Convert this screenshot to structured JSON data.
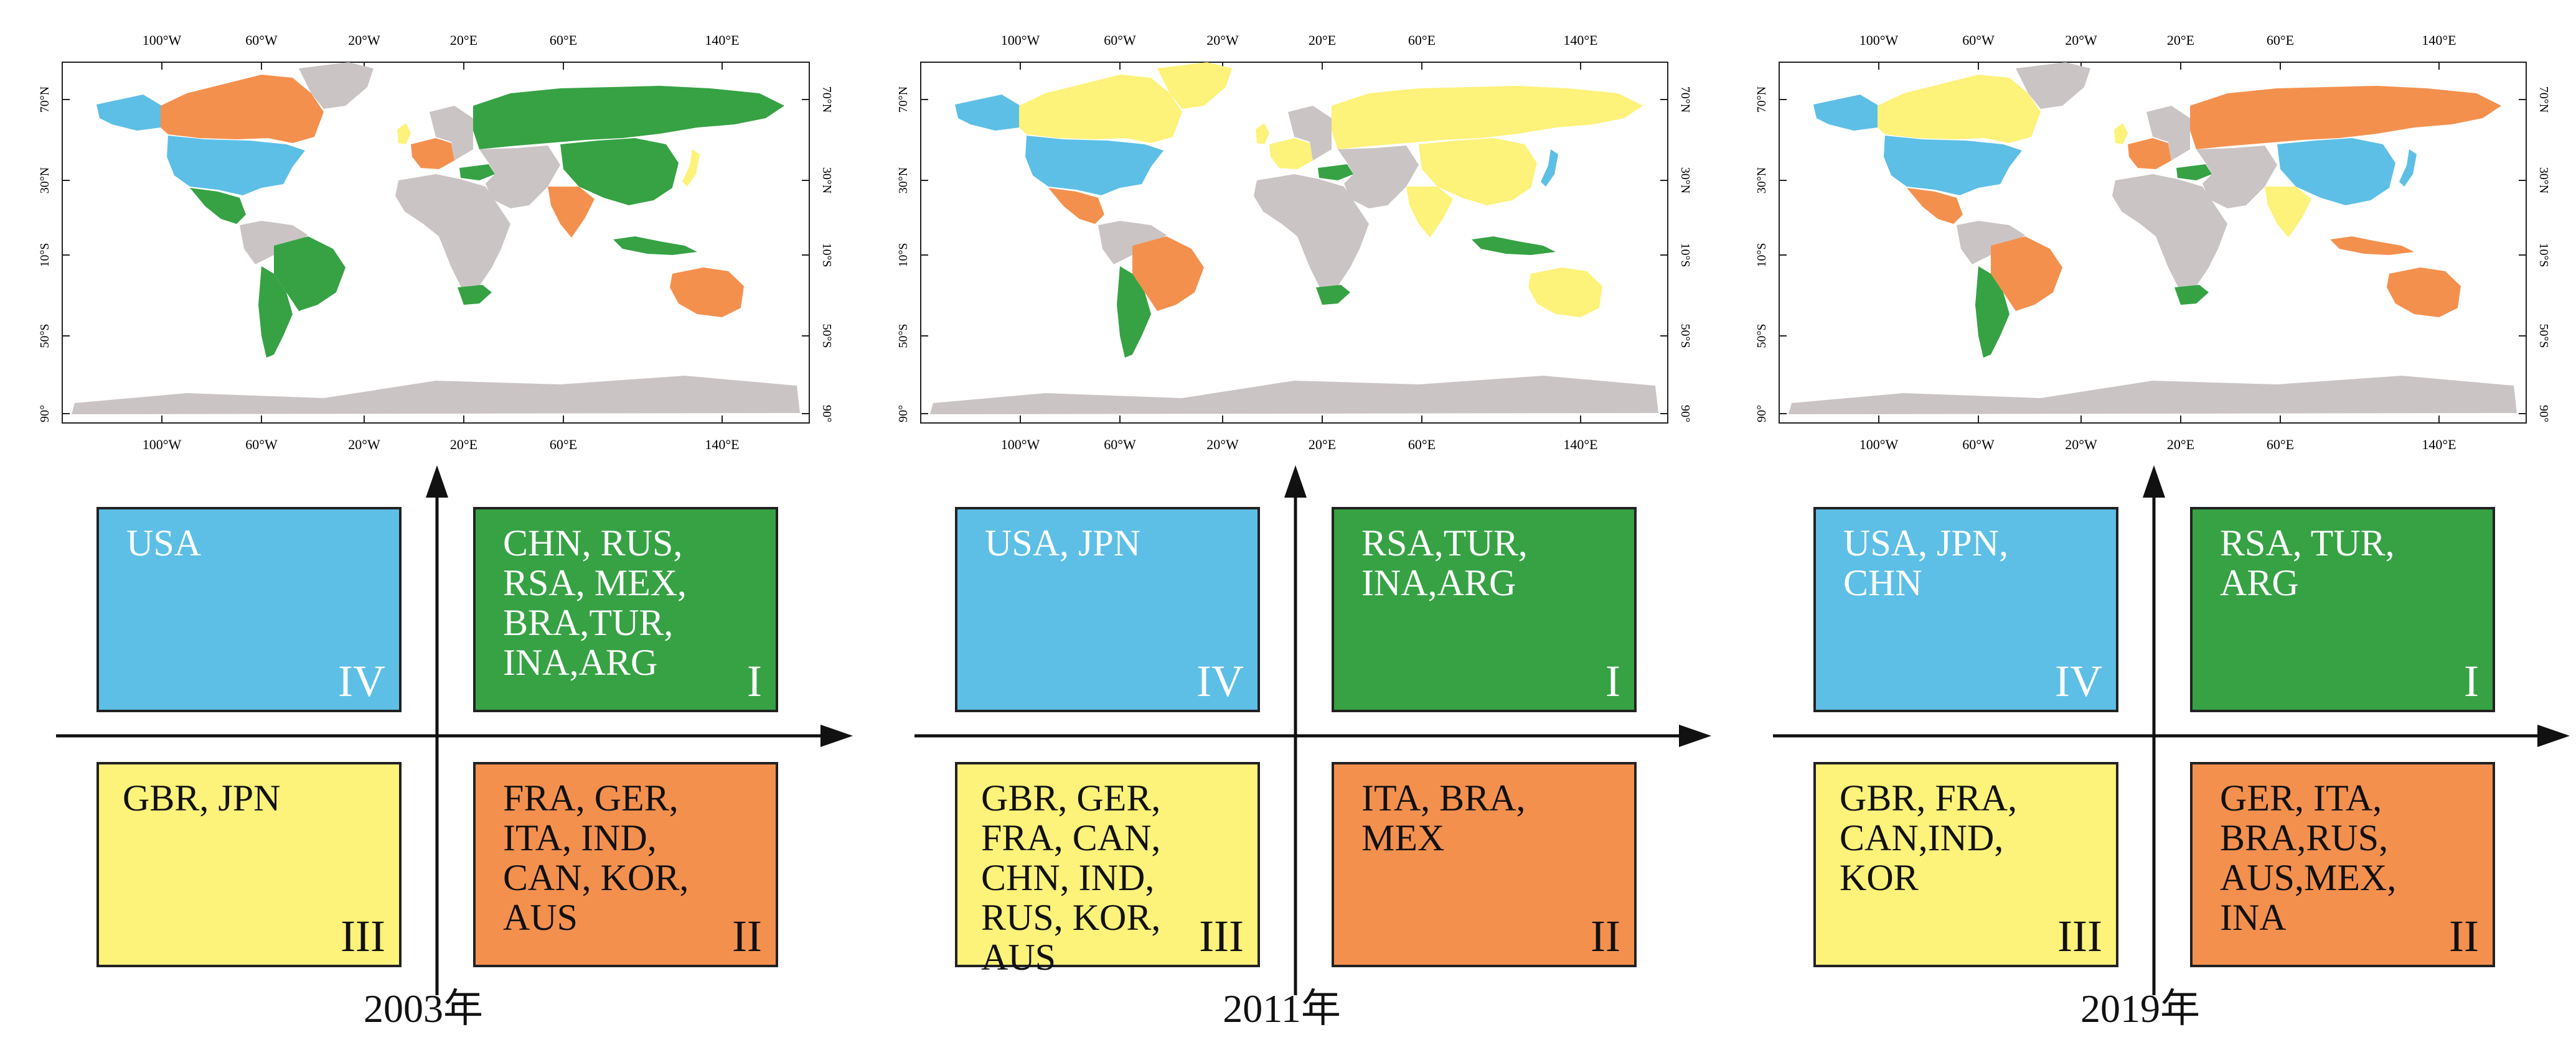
{
  "colors": {
    "I": "#36a244",
    "II": "#f4904e",
    "III": "#fdf27a",
    "IV": "#5dbfe6",
    "other": "#cbc4c4"
  },
  "map_labels": {
    "top_lon": [
      "100°W",
      "60°W",
      "20°W",
      "20°E",
      "60°E",
      "140°E"
    ],
    "bottom_lon": [
      "100°W",
      "60°W",
      "20°W",
      "20°E",
      "60°E",
      "140°E"
    ],
    "left_lat": [
      "70°N",
      "30°N",
      "10°S",
      "50°S",
      "90°"
    ],
    "right_lat": [
      "70°N",
      "30°N",
      "10°S",
      "50°S",
      "90°"
    ]
  },
  "panels": [
    {
      "year": "2003年",
      "quadrants": {
        "IV": {
          "numeral": "IV",
          "countries": "USA"
        },
        "I": {
          "numeral": "I",
          "countries": "CHN, RUS,\nRSA, MEX,\nBRA,TUR,\nINA,ARG"
        },
        "III": {
          "numeral": "III",
          "countries": "GBR, JPN"
        },
        "II": {
          "numeral": "II",
          "countries": "FRA, GER,\nITA, IND,\nCAN, KOR,\nAUS"
        }
      },
      "map_regions": {
        "usa": "IV",
        "canada": "II",
        "alaska": "IV",
        "mexico": "I",
        "south_america_north": "other",
        "brazil": "I",
        "argentina": "I",
        "greenland": "other",
        "europe_west": "II",
        "europe_east": "other",
        "russia": "I",
        "china": "I",
        "india": "II",
        "japan": "III",
        "africa": "other",
        "south_africa": "I",
        "indonesia": "I",
        "australia": "II",
        "middle_east": "other",
        "turkey": "I",
        "uk": "III"
      }
    },
    {
      "year": "2011年",
      "quadrants": {
        "IV": {
          "numeral": "IV",
          "countries": "USA, JPN"
        },
        "I": {
          "numeral": "I",
          "countries": "RSA,TUR,\nINA,ARG"
        },
        "III": {
          "numeral": "III",
          "countries": "GBR, GER,\nFRA, CAN,\nCHN, IND,\nRUS, KOR,\nAUS"
        },
        "II": {
          "numeral": "II",
          "countries": "ITA, BRA,\nMEX"
        }
      },
      "map_regions": {
        "usa": "IV",
        "canada": "III",
        "alaska": "IV",
        "mexico": "II",
        "south_america_north": "other",
        "brazil": "II",
        "argentina": "I",
        "greenland": "III",
        "europe_west": "III",
        "europe_east": "other",
        "russia": "III",
        "china": "III",
        "india": "III",
        "japan": "IV",
        "africa": "other",
        "south_africa": "I",
        "indonesia": "I",
        "australia": "III",
        "middle_east": "other",
        "turkey": "I",
        "uk": "III"
      }
    },
    {
      "year": "2019年",
      "quadrants": {
        "IV": {
          "numeral": "IV",
          "countries": "USA, JPN,\nCHN"
        },
        "I": {
          "numeral": "I",
          "countries": "RSA, TUR,\nARG"
        },
        "III": {
          "numeral": "III",
          "countries": "GBR, FRA,\nCAN,IND,\nKOR"
        },
        "II": {
          "numeral": "II",
          "countries": "GER, ITA,\nBRA,RUS,\nAUS,MEX,\nINA"
        }
      },
      "map_regions": {
        "usa": "IV",
        "canada": "III",
        "alaska": "IV",
        "mexico": "II",
        "south_america_north": "other",
        "brazil": "II",
        "argentina": "I",
        "greenland": "other",
        "europe_west": "II",
        "europe_east": "other",
        "russia": "II",
        "china": "IV",
        "india": "III",
        "japan": "IV",
        "africa": "other",
        "south_africa": "I",
        "indonesia": "II",
        "australia": "II",
        "middle_east": "other",
        "turkey": "I",
        "uk": "III"
      }
    }
  ]
}
